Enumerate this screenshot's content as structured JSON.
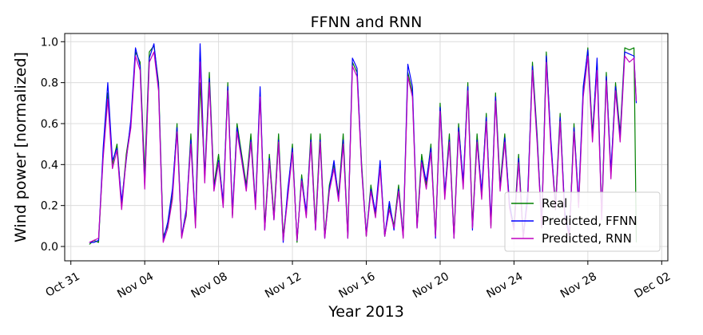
{
  "chart_data": {
    "type": "line",
    "title": "FFNN and RNN",
    "xlabel": "Year 2013",
    "ylabel": "Wind power [normalized]",
    "xlim": [
      "2013-10-30T16:00",
      "2013-12-02T08:00"
    ],
    "ylim": [
      -0.07,
      1.04
    ],
    "x_ticks": [
      {
        "date": "2013-10-31",
        "label": "Oct 31"
      },
      {
        "date": "2013-11-04",
        "label": "Nov 04"
      },
      {
        "date": "2013-11-08",
        "label": "Nov 08"
      },
      {
        "date": "2013-11-12",
        "label": "Nov 12"
      },
      {
        "date": "2013-11-16",
        "label": "Nov 16"
      },
      {
        "date": "2013-11-20",
        "label": "Nov 20"
      },
      {
        "date": "2013-11-24",
        "label": "Nov 24"
      },
      {
        "date": "2013-11-28",
        "label": "Nov 28"
      },
      {
        "date": "2013-12-02",
        "label": "Dec 02"
      }
    ],
    "y_ticks": [
      {
        "value": 0.0,
        "label": "0.0"
      },
      {
        "value": 0.2,
        "label": "0.2"
      },
      {
        "value": 0.4,
        "label": "0.4"
      },
      {
        "value": 0.6,
        "label": "0.6"
      },
      {
        "value": 0.8,
        "label": "0.8"
      },
      {
        "value": 1.0,
        "label": "1.0"
      }
    ],
    "grid": true,
    "legend_position": "lower-right",
    "x": [
      "2013-11-01T00:00",
      "2013-11-01T06:00",
      "2013-11-01T12:00",
      "2013-11-01T18:00",
      "2013-11-02T00:00",
      "2013-11-02T06:00",
      "2013-11-02T12:00",
      "2013-11-02T18:00",
      "2013-11-03T00:00",
      "2013-11-03T06:00",
      "2013-11-03T12:00",
      "2013-11-03T18:00",
      "2013-11-04T00:00",
      "2013-11-04T06:00",
      "2013-11-04T12:00",
      "2013-11-04T18:00",
      "2013-11-05T00:00",
      "2013-11-05T06:00",
      "2013-11-05T12:00",
      "2013-11-05T18:00",
      "2013-11-06T00:00",
      "2013-11-06T06:00",
      "2013-11-06T12:00",
      "2013-11-06T18:00",
      "2013-11-07T00:00",
      "2013-11-07T06:00",
      "2013-11-07T12:00",
      "2013-11-07T18:00",
      "2013-11-08T00:00",
      "2013-11-08T06:00",
      "2013-11-08T12:00",
      "2013-11-08T18:00",
      "2013-11-09T00:00",
      "2013-11-09T06:00",
      "2013-11-09T12:00",
      "2013-11-09T18:00",
      "2013-11-10T00:00",
      "2013-11-10T06:00",
      "2013-11-10T12:00",
      "2013-11-10T18:00",
      "2013-11-11T00:00",
      "2013-11-11T06:00",
      "2013-11-11T12:00",
      "2013-11-11T18:00",
      "2013-11-12T00:00",
      "2013-11-12T06:00",
      "2013-11-12T12:00",
      "2013-11-12T18:00",
      "2013-11-13T00:00",
      "2013-11-13T06:00",
      "2013-11-13T12:00",
      "2013-11-13T18:00",
      "2013-11-14T00:00",
      "2013-11-14T06:00",
      "2013-11-14T12:00",
      "2013-11-14T18:00",
      "2013-11-15T00:00",
      "2013-11-15T06:00",
      "2013-11-15T12:00",
      "2013-11-15T18:00",
      "2013-11-16T00:00",
      "2013-11-16T06:00",
      "2013-11-16T12:00",
      "2013-11-16T18:00",
      "2013-11-17T00:00",
      "2013-11-17T06:00",
      "2013-11-17T12:00",
      "2013-11-17T18:00",
      "2013-11-18T00:00",
      "2013-11-18T06:00",
      "2013-11-18T12:00",
      "2013-11-18T18:00",
      "2013-11-19T00:00",
      "2013-11-19T06:00",
      "2013-11-19T12:00",
      "2013-11-19T18:00",
      "2013-11-20T00:00",
      "2013-11-20T06:00",
      "2013-11-20T12:00",
      "2013-11-20T18:00",
      "2013-11-21T00:00",
      "2013-11-21T06:00",
      "2013-11-21T12:00",
      "2013-11-21T18:00",
      "2013-11-22T00:00",
      "2013-11-22T06:00",
      "2013-11-22T12:00",
      "2013-11-22T18:00",
      "2013-11-23T00:00",
      "2013-11-23T06:00",
      "2013-11-23T12:00",
      "2013-11-23T18:00",
      "2013-11-24T00:00",
      "2013-11-24T06:00",
      "2013-11-24T12:00",
      "2013-11-24T18:00",
      "2013-11-25T00:00",
      "2013-11-25T06:00",
      "2013-11-25T12:00",
      "2013-11-25T18:00",
      "2013-11-26T00:00",
      "2013-11-26T06:00",
      "2013-11-26T12:00",
      "2013-11-26T18:00",
      "2013-11-27T00:00",
      "2013-11-27T06:00",
      "2013-11-27T12:00",
      "2013-11-27T18:00",
      "2013-11-28T00:00",
      "2013-11-28T06:00",
      "2013-11-28T12:00",
      "2013-11-28T18:00",
      "2013-11-29T00:00",
      "2013-11-29T06:00",
      "2013-11-29T12:00",
      "2013-11-29T18:00",
      "2013-11-30T00:00",
      "2013-11-30T06:00",
      "2013-11-30T12:00",
      "2013-11-30T15:00"
    ],
    "series": [
      {
        "name": "Real",
        "color": "#008000",
        "values": [
          0.01,
          0.03,
          0.02,
          0.45,
          0.75,
          0.4,
          0.5,
          0.2,
          0.45,
          0.6,
          0.95,
          0.9,
          0.35,
          0.95,
          0.98,
          0.8,
          0.05,
          0.1,
          0.25,
          0.6,
          0.05,
          0.15,
          0.55,
          0.1,
          0.8,
          0.35,
          0.85,
          0.3,
          0.45,
          0.2,
          0.8,
          0.15,
          0.6,
          0.45,
          0.3,
          0.55,
          0.2,
          0.75,
          0.1,
          0.45,
          0.15,
          0.55,
          0.05,
          0.25,
          0.5,
          0.02,
          0.35,
          0.15,
          0.55,
          0.1,
          0.55,
          0.05,
          0.3,
          0.4,
          0.25,
          0.55,
          0.05,
          0.9,
          0.85,
          0.4,
          0.05,
          0.3,
          0.15,
          0.4,
          0.05,
          0.2,
          0.1,
          0.3,
          0.05,
          0.85,
          0.75,
          0.1,
          0.45,
          0.3,
          0.5,
          0.05,
          0.7,
          0.25,
          0.55,
          0.05,
          0.6,
          0.3,
          0.8,
          0.1,
          0.55,
          0.25,
          0.65,
          0.1,
          0.75,
          0.3,
          0.55,
          0.2,
          0.1,
          0.45,
          0.05,
          0.25,
          0.9,
          0.55,
          0.1,
          0.95,
          0.5,
          0.2,
          0.65,
          0.15,
          0.05,
          0.6,
          0.2,
          0.75,
          0.97,
          0.55,
          0.9,
          0.15,
          0.85,
          0.35,
          0.8,
          0.55,
          0.97,
          0.96,
          0.97,
          0.02
        ]
      },
      {
        "name": "Predicted, FFNN",
        "color": "#0000ff",
        "values": [
          0.02,
          0.02,
          0.03,
          0.48,
          0.8,
          0.42,
          0.48,
          0.22,
          0.42,
          0.62,
          0.97,
          0.88,
          0.3,
          0.92,
          0.99,
          0.78,
          0.03,
          0.12,
          0.28,
          0.58,
          0.05,
          0.18,
          0.52,
          0.12,
          0.99,
          0.33,
          0.82,
          0.28,
          0.42,
          0.22,
          0.78,
          0.17,
          0.58,
          0.43,
          0.28,
          0.52,
          0.2,
          0.78,
          0.08,
          0.43,
          0.13,
          0.52,
          0.02,
          0.28,
          0.48,
          0.03,
          0.33,
          0.17,
          0.52,
          0.08,
          0.52,
          0.04,
          0.28,
          0.42,
          0.23,
          0.52,
          0.04,
          0.92,
          0.87,
          0.38,
          0.06,
          0.28,
          0.17,
          0.42,
          0.05,
          0.22,
          0.08,
          0.28,
          0.05,
          0.89,
          0.78,
          0.09,
          0.42,
          0.32,
          0.48,
          0.04,
          0.68,
          0.26,
          0.52,
          0.04,
          0.58,
          0.32,
          0.78,
          0.08,
          0.52,
          0.27,
          0.63,
          0.12,
          0.73,
          0.28,
          0.53,
          0.22,
          0.08,
          0.43,
          0.04,
          0.27,
          0.88,
          0.53,
          0.11,
          0.93,
          0.52,
          0.18,
          0.63,
          0.17,
          0.06,
          0.58,
          0.22,
          0.78,
          0.96,
          0.53,
          0.92,
          0.14,
          0.83,
          0.37,
          0.78,
          0.53,
          0.95,
          0.94,
          0.93,
          0.7
        ]
      },
      {
        "name": "Predicted, RNN",
        "color": "#c000c0",
        "values": [
          0.02,
          0.03,
          0.04,
          0.43,
          0.72,
          0.38,
          0.47,
          0.18,
          0.43,
          0.58,
          0.93,
          0.86,
          0.28,
          0.9,
          0.95,
          0.76,
          0.02,
          0.09,
          0.23,
          0.56,
          0.04,
          0.16,
          0.5,
          0.09,
          0.9,
          0.31,
          0.8,
          0.27,
          0.41,
          0.19,
          0.76,
          0.14,
          0.56,
          0.42,
          0.27,
          0.51,
          0.18,
          0.73,
          0.08,
          0.42,
          0.13,
          0.51,
          0.03,
          0.24,
          0.46,
          0.03,
          0.32,
          0.14,
          0.51,
          0.08,
          0.51,
          0.04,
          0.27,
          0.38,
          0.22,
          0.5,
          0.04,
          0.88,
          0.83,
          0.37,
          0.05,
          0.27,
          0.14,
          0.38,
          0.05,
          0.18,
          0.09,
          0.27,
          0.04,
          0.83,
          0.73,
          0.09,
          0.41,
          0.28,
          0.46,
          0.05,
          0.66,
          0.23,
          0.51,
          0.04,
          0.56,
          0.28,
          0.76,
          0.09,
          0.51,
          0.23,
          0.61,
          0.09,
          0.71,
          0.27,
          0.51,
          0.19,
          0.08,
          0.41,
          0.04,
          0.23,
          0.86,
          0.51,
          0.09,
          0.9,
          0.48,
          0.18,
          0.61,
          0.14,
          0.05,
          0.56,
          0.19,
          0.73,
          0.93,
          0.51,
          0.86,
          0.13,
          0.81,
          0.33,
          0.76,
          0.51,
          0.93,
          0.9,
          0.92,
          0.71
        ]
      }
    ]
  }
}
